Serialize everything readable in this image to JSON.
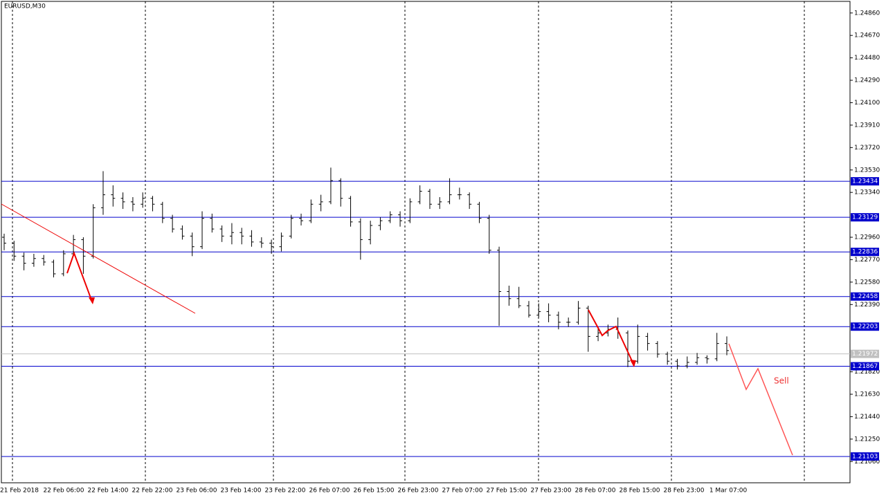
{
  "chart_data": {
    "type": "ohlc",
    "title": "EURUSD,M30",
    "annotations": [
      "Sell"
    ],
    "color": "#000000",
    "ylim": [
      1.2088,
      1.2497
    ],
    "yticks": [
      {
        "value": 1.2486,
        "label": "1.24860"
      },
      {
        "value": 1.2467,
        "label": "1.24670"
      },
      {
        "value": 1.2448,
        "label": "1.24480"
      },
      {
        "value": 1.2429,
        "label": "1.24290"
      },
      {
        "value": 1.241,
        "label": "1.24100"
      },
      {
        "value": 1.2391,
        "label": "1.23910"
      },
      {
        "value": 1.2372,
        "label": "1.23720"
      },
      {
        "value": 1.2353,
        "label": "1.23530"
      },
      {
        "value": 1.2334,
        "label": "1.23340"
      },
      {
        "value": 1.2296,
        "label": "1.22960"
      },
      {
        "value": 1.2277,
        "label": "1.22770"
      },
      {
        "value": 1.2258,
        "label": "1.22580"
      },
      {
        "value": 1.2239,
        "label": "1.22390"
      },
      {
        "value": 1.2182,
        "label": "1.21820"
      },
      {
        "value": 1.2163,
        "label": "1.21630"
      },
      {
        "value": 1.2144,
        "label": "1.21440"
      },
      {
        "value": 1.2125,
        "label": "1.21250"
      },
      {
        "value": 1.2106,
        "label": "1.21060"
      }
    ],
    "levels": [
      {
        "value": 1.23434,
        "label": "1.23434",
        "color": "#0000cc"
      },
      {
        "value": 1.23129,
        "label": "1.23129",
        "color": "#0000cc"
      },
      {
        "value": 1.22836,
        "label": "1.22836",
        "color": "#0000cc"
      },
      {
        "value": 1.22458,
        "label": "1.22458",
        "color": "#0000cc"
      },
      {
        "value": 1.22203,
        "label": "1.22203",
        "color": "#0000cc"
      },
      {
        "value": 1.21972,
        "label": "1.21972",
        "color": "#c0c0c0"
      },
      {
        "value": 1.21867,
        "label": "1.21867",
        "color": "#0000cc"
      },
      {
        "value": 1.21103,
        "label": "1.21103",
        "color": "#0000cc"
      }
    ],
    "x_labels": [
      "21 Feb 2018",
      "22 Feb 06:00",
      "22 Feb 14:00",
      "22 Feb 22:00",
      "23 Feb 06:00",
      "23 Feb 14:00",
      "23 Feb 22:00",
      "26 Feb 07:00",
      "26 Feb 15:00",
      "26 Feb 23:00",
      "27 Feb 07:00",
      "27 Feb 15:00",
      "27 Feb 23:00",
      "28 Feb 07:00",
      "28 Feb 15:00",
      "28 Feb 23:00",
      "1 Mar 07:00"
    ],
    "bars": [
      [
        1.2296,
        1.2299,
        1.2285,
        1.2291
      ],
      [
        1.2291,
        1.2293,
        1.2276,
        1.228
      ],
      [
        1.228,
        1.2283,
        1.2268,
        1.2274
      ],
      [
        1.2274,
        1.2282,
        1.2271,
        1.2278
      ],
      [
        1.2278,
        1.2281,
        1.2272,
        1.2275
      ],
      [
        1.2275,
        1.2277,
        1.2262,
        1.2265
      ],
      [
        1.2265,
        1.2285,
        1.2263,
        1.2282
      ],
      [
        1.2282,
        1.2298,
        1.228,
        1.2294
      ],
      [
        1.2294,
        1.2296,
        1.2265,
        1.228
      ],
      [
        1.228,
        1.2324,
        1.2278,
        1.2321
      ],
      [
        1.2321,
        1.2352,
        1.2315,
        1.2332
      ],
      [
        1.2332,
        1.234,
        1.2322,
        1.2329
      ],
      [
        1.2329,
        1.2334,
        1.232,
        1.2326
      ],
      [
        1.2326,
        1.233,
        1.2318,
        1.2324
      ],
      [
        1.2324,
        1.2334,
        1.2321,
        1.2329
      ],
      [
        1.2329,
        1.2331,
        1.2318,
        1.2324
      ],
      [
        1.2324,
        1.2326,
        1.2308,
        1.2312
      ],
      [
        1.2312,
        1.2315,
        1.23,
        1.2303
      ],
      [
        1.2303,
        1.2306,
        1.2294,
        1.2297
      ],
      [
        1.2297,
        1.23,
        1.228,
        1.2288
      ],
      [
        1.2288,
        1.2318,
        1.2286,
        1.2312
      ],
      [
        1.2312,
        1.2316,
        1.23,
        1.2303
      ],
      [
        1.2303,
        1.2306,
        1.2292,
        1.2297
      ],
      [
        1.2297,
        1.2308,
        1.229,
        1.23
      ],
      [
        1.23,
        1.2304,
        1.229,
        1.2297
      ],
      [
        1.2297,
        1.2302,
        1.2288,
        1.2292
      ],
      [
        1.2292,
        1.2296,
        1.2287,
        1.2291
      ],
      [
        1.2291,
        1.2294,
        1.2282,
        1.2288
      ],
      [
        1.2288,
        1.23,
        1.2284,
        1.2297
      ],
      [
        1.2297,
        1.2315,
        1.2295,
        1.2312
      ],
      [
        1.2312,
        1.2316,
        1.2306,
        1.231
      ],
      [
        1.231,
        1.2328,
        1.2308,
        1.2324
      ],
      [
        1.2324,
        1.2332,
        1.2318,
        1.2326
      ],
      [
        1.2326,
        1.2355,
        1.2324,
        1.2344
      ],
      [
        1.2344,
        1.2346,
        1.2322,
        1.2329
      ],
      [
        1.2329,
        1.2331,
        1.2305,
        1.2309
      ],
      [
        1.2309,
        1.2312,
        1.2277,
        1.2294
      ],
      [
        1.2294,
        1.231,
        1.229,
        1.2306
      ],
      [
        1.2306,
        1.2313,
        1.2302,
        1.231
      ],
      [
        1.231,
        1.2318,
        1.2308,
        1.2315
      ],
      [
        1.2315,
        1.2318,
        1.2305,
        1.231
      ],
      [
        1.231,
        1.2329,
        1.2308,
        1.2326
      ],
      [
        1.2326,
        1.234,
        1.2324,
        1.2335
      ],
      [
        1.2335,
        1.2337,
        1.232,
        1.2324
      ],
      [
        1.2324,
        1.233,
        1.232,
        1.2326
      ],
      [
        1.2326,
        1.2346,
        1.2324,
        1.2332
      ],
      [
        1.2332,
        1.2338,
        1.2328,
        1.2332
      ],
      [
        1.2332,
        1.2334,
        1.232,
        1.2324
      ],
      [
        1.2324,
        1.2326,
        1.2308,
        1.2312
      ],
      [
        1.2312,
        1.2315,
        1.2282,
        1.2285
      ],
      [
        1.2285,
        1.2288,
        1.2221,
        1.225
      ],
      [
        1.225,
        1.2255,
        1.2238,
        1.2244
      ],
      [
        1.2244,
        1.2254,
        1.2236,
        1.2238
      ],
      [
        1.2238,
        1.2242,
        1.2228,
        1.223
      ],
      [
        1.223,
        1.224,
        1.2228,
        1.2233
      ],
      [
        1.2233,
        1.224,
        1.2224,
        1.223
      ],
      [
        1.223,
        1.2233,
        1.2218,
        1.2224
      ],
      [
        1.2224,
        1.2228,
        1.222,
        1.2224
      ],
      [
        1.2224,
        1.2242,
        1.2222,
        1.2236
      ],
      [
        1.2236,
        1.2238,
        1.2199,
        1.2212
      ],
      [
        1.2212,
        1.222,
        1.2208,
        1.2215
      ],
      [
        1.2215,
        1.2222,
        1.2212,
        1.2218
      ],
      [
        1.2218,
        1.2228,
        1.221,
        1.2215
      ],
      [
        1.2215,
        1.2217,
        1.2186,
        1.2191
      ],
      [
        1.2191,
        1.2222,
        1.2189,
        1.2212
      ],
      [
        1.2212,
        1.2215,
        1.22,
        1.2206
      ],
      [
        1.2206,
        1.2208,
        1.2194,
        1.2197
      ],
      [
        1.2197,
        1.2199,
        1.2188,
        1.2191
      ],
      [
        1.2191,
        1.2193,
        1.2184,
        1.2187
      ],
      [
        1.2187,
        1.2195,
        1.2185,
        1.219
      ],
      [
        1.219,
        1.2198,
        1.2188,
        1.2194
      ],
      [
        1.2194,
        1.2196,
        1.2189,
        1.2193
      ],
      [
        1.2193,
        1.2215,
        1.2191,
        1.2206
      ],
      [
        1.2206,
        1.2212,
        1.2196,
        1.22
      ]
    ]
  }
}
